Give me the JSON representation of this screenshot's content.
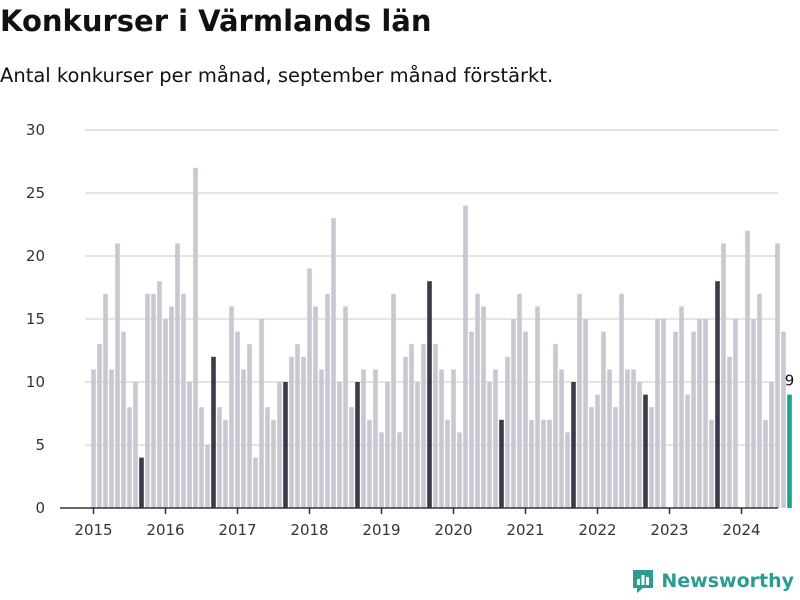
{
  "header": {
    "title": "Konkurser i Värmlands län",
    "subtitle": "Antal konkurser per månad, september månad förstärkt."
  },
  "brand": {
    "name": "Newsworthy",
    "icon": "newsworthy-logo-icon",
    "color": "#2a9d90"
  },
  "colors": {
    "bar": "#c8c8d2",
    "highlight": "#3a3a48",
    "latest": "#16a394",
    "grid": "#dcdcdc",
    "axis": "#333333"
  },
  "chart_data": {
    "type": "bar",
    "x_start": "2015-01",
    "ylim": [
      0,
      30
    ],
    "yticks": [
      0,
      5,
      10,
      15,
      20,
      25,
      30
    ],
    "xticks": [
      "2015",
      "2016",
      "2017",
      "2018",
      "2019",
      "2020",
      "2021",
      "2022",
      "2023",
      "2024"
    ],
    "grid": true,
    "highlight_month": "september",
    "values": [
      11,
      13,
      17,
      11,
      21,
      14,
      8,
      10,
      4,
      17,
      17,
      18,
      15,
      16,
      21,
      17,
      10,
      27,
      8,
      5,
      12,
      8,
      7,
      16,
      14,
      11,
      13,
      4,
      15,
      8,
      7,
      10,
      10,
      12,
      13,
      12,
      19,
      16,
      11,
      17,
      23,
      10,
      16,
      8,
      10,
      11,
      7,
      11,
      6,
      10,
      17,
      6,
      12,
      13,
      10,
      13,
      18,
      13,
      11,
      7,
      11,
      6,
      24,
      14,
      17,
      16,
      10,
      11,
      7,
      12,
      15,
      17,
      14,
      7,
      16,
      7,
      7,
      13,
      11,
      6,
      10,
      17,
      15,
      8,
      9,
      14,
      11,
      8,
      17,
      11,
      11,
      10,
      9,
      8,
      15,
      15,
      0,
      14,
      16,
      9,
      14,
      15,
      15,
      7,
      18,
      21,
      12,
      15,
      0,
      22,
      15,
      17,
      7,
      10,
      21,
      14,
      9
    ],
    "last_value_label": "9"
  }
}
